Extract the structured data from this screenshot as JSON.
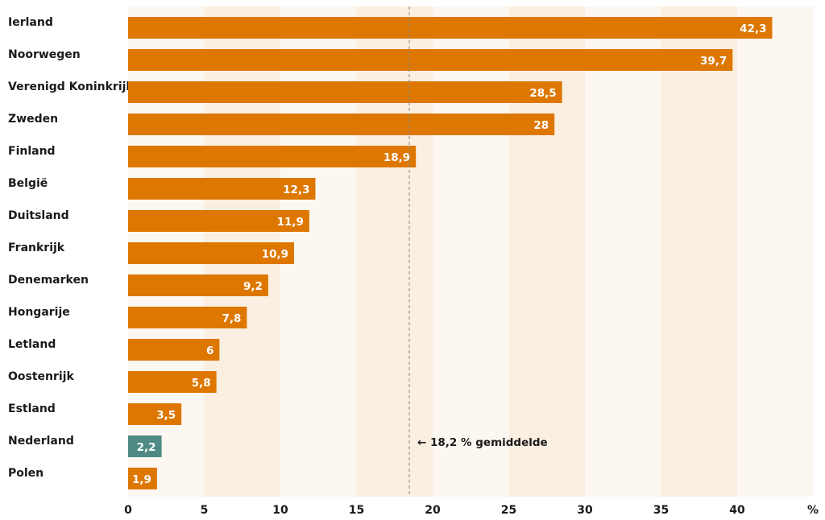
{
  "chart_data": {
    "type": "bar",
    "orientation": "horizontal",
    "categories": [
      "Ierland",
      "Noorwegen",
      "Verenigd Koninkrijk",
      "Zweden",
      "Finland",
      "België",
      "Duitsland",
      "Frankrijk",
      "Denemarken",
      "Hongarije",
      "Letland",
      "Oostenrijk",
      "Estland",
      "Nederland",
      "Polen"
    ],
    "values": [
      42.3,
      39.7,
      28.5,
      28,
      18.9,
      12.3,
      11.9,
      10.9,
      9.2,
      7.8,
      6,
      5.8,
      3.5,
      2.2,
      1.9
    ],
    "value_labels": [
      "42,3",
      "39,7",
      "28,5",
      "28",
      "18,9",
      "12,3",
      "11,9",
      "10,9",
      "9,2",
      "7,8",
      "6",
      "5,8",
      "3,5",
      "2,2",
      "1,9"
    ],
    "highlight": "Nederland",
    "colors": {
      "bar": "#dd7700",
      "highlight": "#4f8a84",
      "band_light": "#fdf7f1",
      "band_dark": "#fbefe2",
      "average_line": "#8a8a8a"
    },
    "xlim": [
      0,
      45
    ],
    "x_ticks": [
      0,
      5,
      10,
      15,
      20,
      25,
      30,
      35,
      40
    ],
    "x_tick_labels": [
      "0",
      "5",
      "10",
      "15",
      "20",
      "25",
      "30",
      "35",
      "40"
    ],
    "x_unit": "%",
    "average": {
      "value": 18.2,
      "label": "← 18,2 % gemiddelde"
    },
    "grid": "alternating vertical bands",
    "legend": "none"
  }
}
